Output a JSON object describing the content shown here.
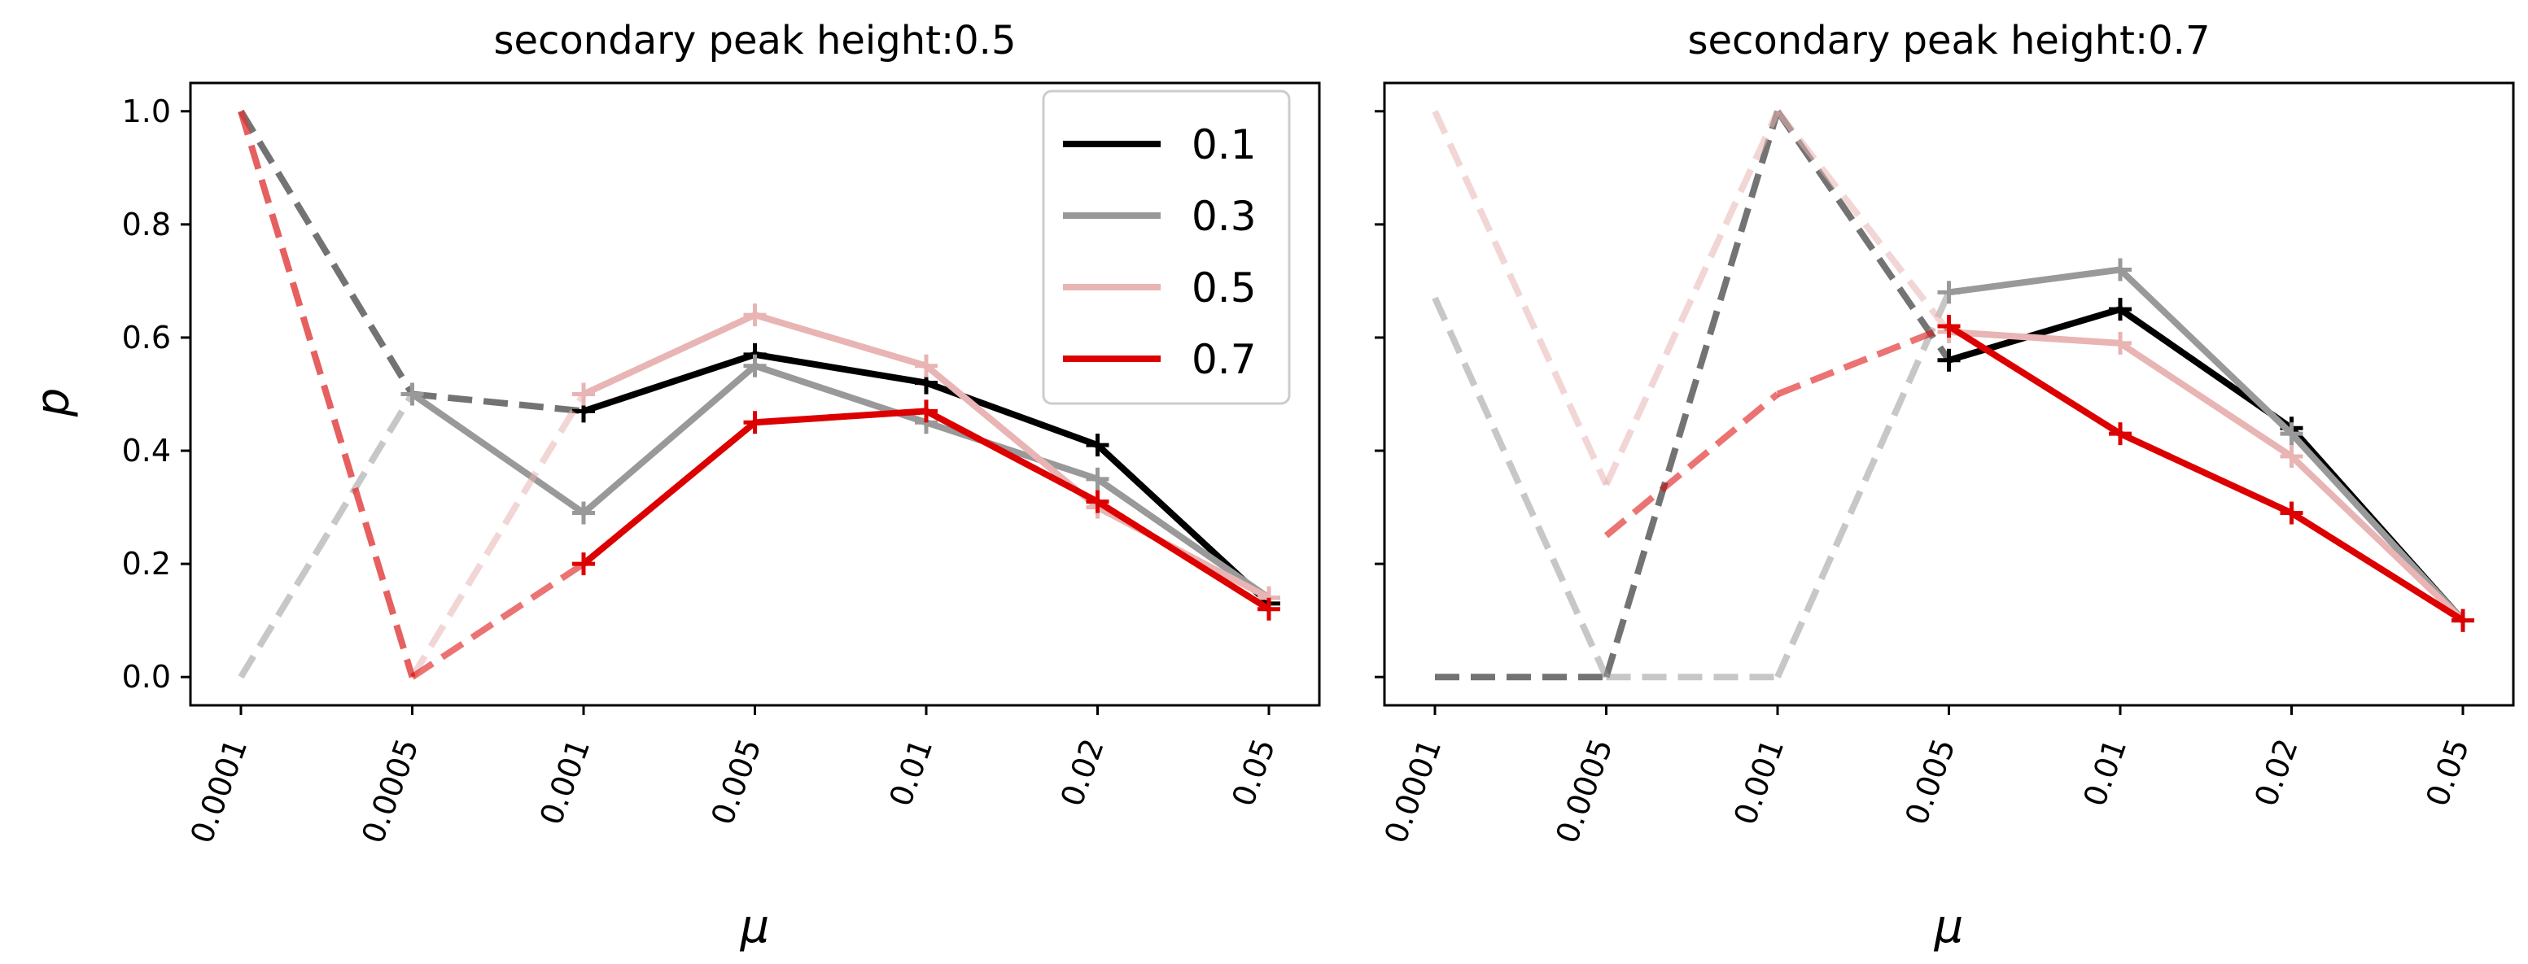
{
  "chart_data": [
    {
      "type": "line",
      "title": "secondary peak height:0.5",
      "xlabel": "μ",
      "ylabel": "p",
      "categories": [
        "0.0001",
        "0.0005",
        "0.001",
        "0.005",
        "0.01",
        "0.02",
        "0.05"
      ],
      "ylim": [
        -0.05,
        1.05
      ],
      "yticks": [
        "0.0",
        "0.2",
        "0.4",
        "0.6",
        "0.8",
        "1.0"
      ],
      "series": [
        {
          "name": "0.1",
          "color": "#000000",
          "solid_from": 2,
          "values": [
            1.0,
            0.5,
            0.47,
            0.57,
            0.52,
            0.41,
            0.13
          ]
        },
        {
          "name": "0.3",
          "color": "#999999",
          "solid_from": 1,
          "values": [
            0.0,
            0.5,
            0.29,
            0.55,
            0.45,
            0.35,
            0.14
          ]
        },
        {
          "name": "0.5",
          "color": "#e8b4b4",
          "solid_from": 2,
          "values": [
            1.0,
            0.0,
            0.5,
            0.64,
            0.55,
            0.3,
            0.14
          ]
        },
        {
          "name": "0.7",
          "color": "#dd0000",
          "solid_from": 2,
          "values": [
            1.0,
            0.0,
            0.2,
            0.45,
            0.47,
            0.31,
            0.12
          ]
        }
      ],
      "legend": "top-right"
    },
    {
      "type": "line",
      "title": "secondary peak height:0.7",
      "xlabel": "μ",
      "ylabel": "",
      "categories": [
        "0.0001",
        "0.0005",
        "0.001",
        "0.005",
        "0.01",
        "0.02",
        "0.05"
      ],
      "ylim": [
        -0.05,
        1.05
      ],
      "series": [
        {
          "name": "0.1",
          "color": "#000000",
          "solid_from": 3,
          "values": [
            0.0,
            0.0,
            1.0,
            0.56,
            0.65,
            0.44,
            0.1
          ]
        },
        {
          "name": "0.3",
          "color": "#999999",
          "solid_from": 3,
          "values": [
            0.67,
            0.0,
            0.0,
            0.68,
            0.72,
            0.43,
            0.1
          ]
        },
        {
          "name": "0.5",
          "color": "#e8b4b4",
          "solid_from": 3,
          "values": [
            1.0,
            0.34,
            1.0,
            0.61,
            0.59,
            0.39,
            0.1
          ]
        },
        {
          "name": "0.7",
          "color": "#dd0000",
          "solid_from": 3,
          "values": [
            null,
            0.25,
            0.5,
            0.62,
            0.43,
            0.29,
            0.1
          ]
        }
      ]
    }
  ]
}
